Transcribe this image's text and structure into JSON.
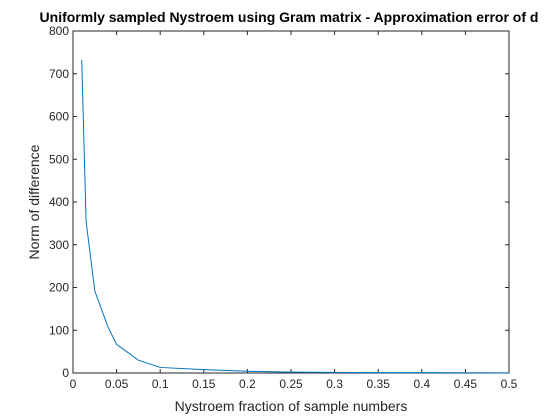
{
  "chart_data": {
    "type": "line",
    "title": "Uniformly sampled Nystroem using Gram matrix - Approximation error of d",
    "xlabel": "Nystroem fraction of sample numbers",
    "ylabel": "Norm of difference",
    "xlim": [
      0,
      0.5
    ],
    "ylim": [
      0,
      800
    ],
    "xticks": [
      0,
      0.05,
      0.1,
      0.15,
      0.2,
      0.25,
      0.3,
      0.35,
      0.4,
      0.45,
      0.5
    ],
    "xtick_labels": [
      "0",
      "0.05",
      "0.1",
      "0.15",
      "0.2",
      "0.25",
      "0.3",
      "0.35",
      "0.4",
      "0.45",
      "0.5"
    ],
    "yticks": [
      0,
      100,
      200,
      300,
      400,
      500,
      600,
      700,
      800
    ],
    "ytick_labels": [
      "0",
      "100",
      "200",
      "300",
      "400",
      "500",
      "600",
      "700",
      "800"
    ],
    "grid": false,
    "series": [
      {
        "color": "#0072BD",
        "x": [
          0.01,
          0.015,
          0.025,
          0.04,
          0.05,
          0.075,
          0.1,
          0.15,
          0.2,
          0.25,
          0.3,
          0.35,
          0.4,
          0.45,
          0.5
        ],
        "y": [
          732,
          355,
          192,
          108,
          67,
          30,
          13,
          8,
          4,
          2,
          1.5,
          1,
          0.8,
          0.5,
          0.3
        ]
      }
    ]
  }
}
